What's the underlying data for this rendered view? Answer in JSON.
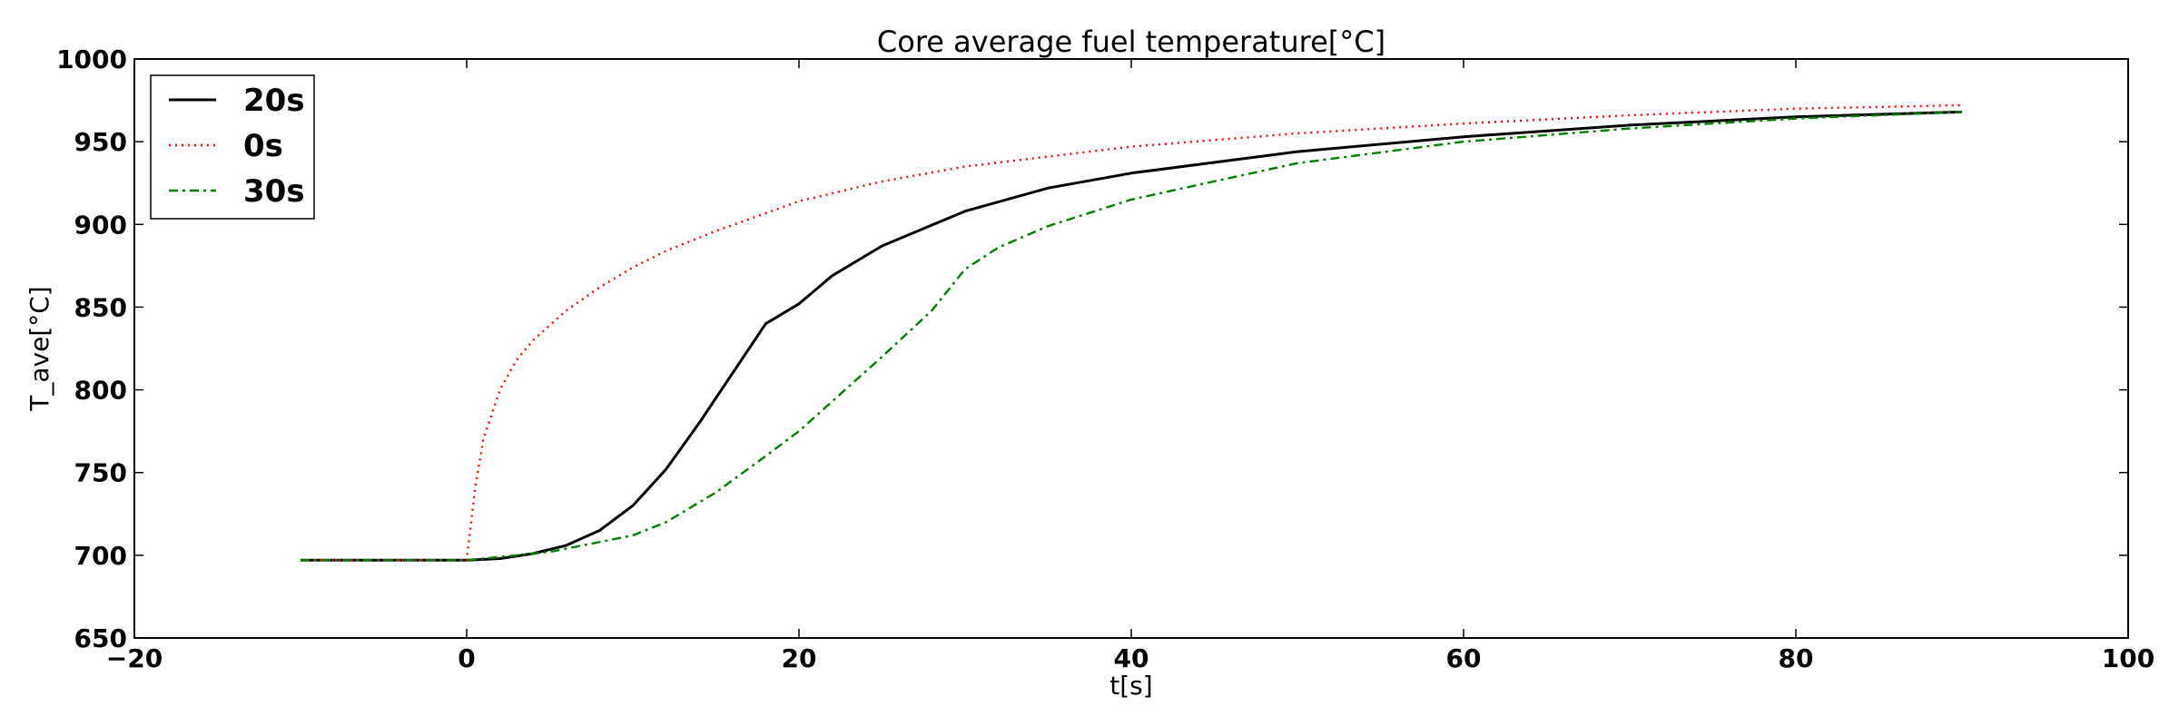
{
  "chart_data": {
    "type": "line",
    "title": "Core average fuel temperature[°C]",
    "xlabel": "t[s]",
    "ylabel": "T_ave[°C]",
    "xlim": [
      -20,
      100
    ],
    "ylim": [
      650,
      1000
    ],
    "xticks": [
      -20,
      0,
      20,
      40,
      60,
      80,
      100
    ],
    "yticks": [
      650,
      700,
      750,
      800,
      850,
      900,
      950,
      1000
    ],
    "grid": false,
    "legend_position": "top-left",
    "series": [
      {
        "name": "20s",
        "color": "#000000",
        "style": "solid",
        "x": [
          -10,
          0,
          2,
          4,
          6,
          8,
          10,
          12,
          14,
          16,
          18,
          20,
          22,
          25,
          30,
          35,
          40,
          50,
          60,
          70,
          80,
          90
        ],
        "y": [
          697,
          697,
          698,
          701,
          706,
          715,
          730,
          752,
          780,
          810,
          840,
          852,
          869,
          887,
          908,
          922,
          931,
          944,
          953,
          960,
          965,
          968
        ]
      },
      {
        "name": "0s",
        "color": "#ff0000",
        "style": "dotted",
        "x": [
          -10,
          0,
          0.5,
          1,
          2,
          3,
          4,
          6,
          8,
          10,
          12,
          15,
          20,
          25,
          30,
          40,
          50,
          60,
          70,
          80,
          90
        ],
        "y": [
          697,
          697,
          740,
          770,
          800,
          818,
          830,
          848,
          862,
          874,
          884,
          896,
          914,
          926,
          935,
          947,
          955,
          961,
          966,
          970,
          972
        ]
      },
      {
        "name": "30s",
        "color": "#008000",
        "style": "dashdot",
        "x": [
          -10,
          0,
          5,
          10,
          12,
          15,
          18,
          20,
          22,
          25,
          28,
          30,
          32,
          35,
          40,
          50,
          60,
          70,
          80,
          90
        ],
        "y": [
          697,
          697,
          702,
          712,
          720,
          738,
          760,
          775,
          793,
          820,
          848,
          873,
          886,
          899,
          915,
          937,
          950,
          958,
          964,
          968
        ]
      }
    ]
  }
}
